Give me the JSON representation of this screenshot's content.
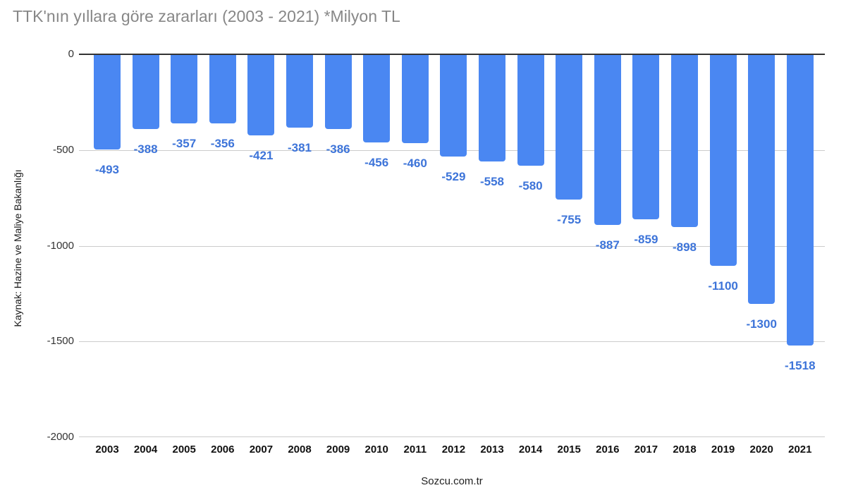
{
  "title": "TTK'nın yıllara göre zararları (2003 - 2021) *Milyon TL",
  "source_label": "Kaynak: Hazine ve Maliye Bakanlığı",
  "footer": "Sozcu.com.tr",
  "colors": {
    "bar": "#4a87f2",
    "annotation": "#3d74d9",
    "title_text": "#878787",
    "gridline": "#cccccc",
    "baseline": "#333333",
    "axis_text": "#333333",
    "year_text": "#111111"
  },
  "chart_data": {
    "type": "bar",
    "title": "TTK'nın yıllara göre zararları (2003 - 2021) *Milyon TL",
    "xlabel": "",
    "ylabel": "",
    "categories": [
      "2003",
      "2004",
      "2005",
      "2006",
      "2007",
      "2008",
      "2009",
      "2010",
      "2011",
      "2012",
      "2013",
      "2014",
      "2015",
      "2016",
      "2017",
      "2018",
      "2019",
      "2020",
      "2021"
    ],
    "values": [
      -493,
      -388,
      -357,
      -356,
      -421,
      -381,
      -386,
      -456,
      -460,
      -529,
      -558,
      -580,
      -755,
      -887,
      -859,
      -898,
      -1100,
      -1300,
      -1518
    ],
    "annotations": [
      "-493",
      "-388",
      "-357",
      "-356",
      "-421",
      "-381",
      "-386",
      "-456",
      "-460",
      "-529",
      "-558",
      "-580",
      "-755",
      "-887",
      "-859",
      "-898",
      "-1100",
      "-1300",
      "-1518"
    ],
    "ylim": [
      -2000,
      0
    ],
    "yticks": [
      {
        "value": 0,
        "label": "0"
      },
      {
        "value": -500,
        "label": "-500"
      },
      {
        "value": -1000,
        "label": "-1000"
      },
      {
        "value": -1500,
        "label": "-1500"
      },
      {
        "value": -2000,
        "label": "-2000"
      }
    ],
    "grid": true,
    "legend": "none"
  }
}
